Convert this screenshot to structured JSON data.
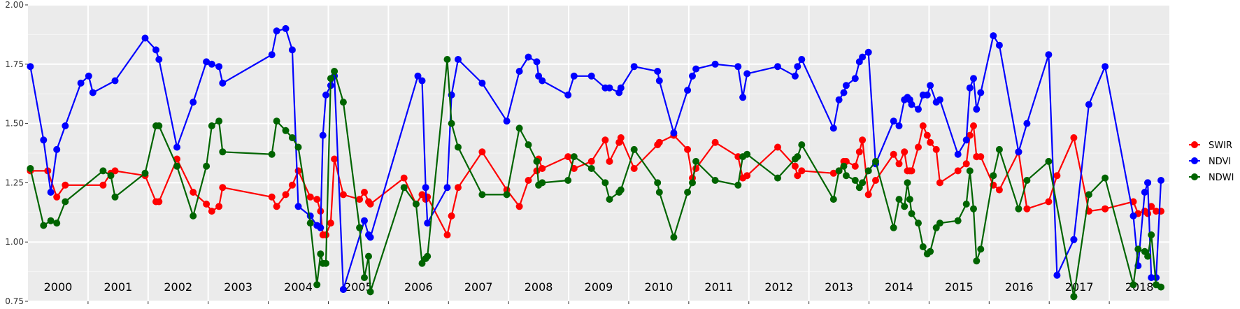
{
  "chart_data": {
    "type": "line",
    "title": "",
    "xlabel": "",
    "ylabel": "",
    "ylim": [
      0.75,
      2.0
    ],
    "yticks": [
      "0.75",
      "1.00",
      "1.25",
      "1.50",
      "1.75",
      "2.00"
    ],
    "xlim": [
      2000.0,
      2019.0
    ],
    "years": [
      "2000",
      "2001",
      "2002",
      "2003",
      "2004",
      "2005",
      "2006",
      "2007",
      "2008",
      "2009",
      "2010",
      "2011",
      "2012",
      "2013",
      "2014",
      "2015",
      "2016",
      "2017",
      "2018"
    ],
    "grid": true,
    "legend_position": "right",
    "series": [
      {
        "name": "SWIR",
        "color": "#ff0000",
        "x": [
          2000.04,
          2000.33,
          2000.48,
          2000.62,
          2001.25,
          2001.38,
          2001.45,
          2001.95,
          2002.13,
          2002.18,
          2002.48,
          2002.75,
          2002.97,
          2003.06,
          2003.18,
          2003.24,
          2004.06,
          2004.14,
          2004.29,
          2004.4,
          2004.5,
          2004.7,
          2004.81,
          2004.87,
          2004.91,
          2004.96,
          2005.04,
          2005.1,
          2005.25,
          2005.52,
          2005.6,
          2005.67,
          2005.7,
          2006.26,
          2006.46,
          2006.56,
          2006.62,
          2006.65,
          2006.98,
          2007.05,
          2007.16,
          2007.56,
          2007.97,
          2008.18,
          2008.33,
          2008.47,
          2008.5,
          2008.56,
          2008.99,
          2009.09,
          2009.38,
          2009.61,
          2009.68,
          2009.84,
          2009.87,
          2010.09,
          2010.48,
          2010.51,
          2010.75,
          2010.98,
          2011.06,
          2011.12,
          2011.44,
          2011.82,
          2011.9,
          2011.97,
          2012.48,
          2012.77,
          2012.81,
          2012.88,
          2013.41,
          2013.5,
          2013.58,
          2013.62,
          2013.77,
          2013.84,
          2013.89,
          2013.99,
          2014.11,
          2014.41,
          2014.5,
          2014.59,
          2014.64,
          2014.68,
          2014.71,
          2014.82,
          2014.9,
          2014.97,
          2015.02,
          2015.12,
          2015.18,
          2015.48,
          2015.62,
          2015.68,
          2015.74,
          2015.79,
          2015.86,
          2016.07,
          2016.17,
          2016.49,
          2016.63,
          2016.99,
          2017.13,
          2017.41,
          2017.66,
          2017.93,
          2018.4,
          2018.48,
          2018.59,
          2018.64,
          2018.7,
          2018.78,
          2018.86
        ],
        "y": [
          1.3,
          1.3,
          1.19,
          1.24,
          1.24,
          1.29,
          1.3,
          1.28,
          1.17,
          1.17,
          1.35,
          1.21,
          1.16,
          1.13,
          1.15,
          1.23,
          1.19,
          1.15,
          1.2,
          1.24,
          1.3,
          1.19,
          1.18,
          1.13,
          1.03,
          1.03,
          1.08,
          1.35,
          1.2,
          1.18,
          1.21,
          1.17,
          1.16,
          1.27,
          1.16,
          1.2,
          1.18,
          1.19,
          1.03,
          1.11,
          1.23,
          1.38,
          1.22,
          1.15,
          1.26,
          1.3,
          1.35,
          1.31,
          1.36,
          1.31,
          1.34,
          1.43,
          1.34,
          1.42,
          1.44,
          1.31,
          1.41,
          1.42,
          1.45,
          1.39,
          1.27,
          1.31,
          1.42,
          1.36,
          1.27,
          1.28,
          1.4,
          1.32,
          1.28,
          1.3,
          1.29,
          1.3,
          1.34,
          1.34,
          1.32,
          1.38,
          1.43,
          1.2,
          1.26,
          1.37,
          1.33,
          1.38,
          1.3,
          1.3,
          1.3,
          1.4,
          1.49,
          1.45,
          1.42,
          1.39,
          1.25,
          1.3,
          1.33,
          1.45,
          1.49,
          1.36,
          1.36,
          1.24,
          1.22,
          1.38,
          1.14,
          1.17,
          1.28,
          1.44,
          1.13,
          1.14,
          1.17,
          1.12,
          1.13,
          1.12,
          1.15,
          1.13,
          1.13
        ],
        "dot_ends": [
          95,
          105,
          108
        ]
      },
      {
        "name": "NDVI",
        "color": "#0000ff",
        "x": [
          2000.04,
          2000.26,
          2000.38,
          2000.48,
          2000.62,
          2000.88,
          2001.01,
          2001.08,
          2001.45,
          2001.95,
          2002.13,
          2002.18,
          2002.48,
          2002.75,
          2002.97,
          2003.06,
          2003.18,
          2003.24,
          2004.06,
          2004.14,
          2004.29,
          2004.4,
          2004.5,
          2004.7,
          2004.81,
          2004.87,
          2004.91,
          2004.96,
          2005.04,
          2005.1,
          2005.25,
          2005.6,
          2005.67,
          2005.7,
          2006.49,
          2006.56,
          2006.62,
          2006.65,
          2006.98,
          2007.05,
          2007.16,
          2007.56,
          2007.97,
          2008.18,
          2008.33,
          2008.47,
          2008.5,
          2008.56,
          2008.99,
          2009.09,
          2009.38,
          2009.61,
          2009.68,
          2009.84,
          2009.87,
          2010.09,
          2010.48,
          2010.51,
          2010.75,
          2010.98,
          2011.06,
          2011.12,
          2011.44,
          2011.82,
          2011.9,
          2011.97,
          2012.48,
          2012.77,
          2012.81,
          2012.88,
          2013.41,
          2013.5,
          2013.58,
          2013.62,
          2013.77,
          2013.84,
          2013.89,
          2013.99,
          2014.11,
          2014.41,
          2014.5,
          2014.59,
          2014.64,
          2014.68,
          2014.71,
          2014.82,
          2014.9,
          2014.97,
          2015.02,
          2015.12,
          2015.18,
          2015.48,
          2015.62,
          2015.68,
          2015.74,
          2015.79,
          2015.86,
          2016.07,
          2016.17,
          2016.49,
          2016.63,
          2016.99,
          2017.13,
          2017.41,
          2017.66,
          2017.93,
          2018.4,
          2018.48,
          2018.59,
          2018.64,
          2018.7,
          2018.78,
          2018.86
        ],
        "y": [
          1.74,
          1.43,
          1.21,
          1.39,
          1.49,
          1.67,
          1.7,
          1.63,
          1.68,
          1.86,
          1.81,
          1.77,
          1.4,
          1.59,
          1.76,
          1.75,
          1.74,
          1.67,
          1.79,
          1.89,
          1.9,
          1.81,
          1.15,
          1.11,
          1.07,
          1.06,
          1.45,
          1.62,
          1.66,
          1.7,
          0.8,
          1.09,
          1.03,
          1.02,
          1.7,
          1.68,
          1.23,
          1.08,
          1.23,
          1.62,
          1.77,
          1.67,
          1.51,
          1.72,
          1.78,
          1.76,
          1.7,
          1.68,
          1.62,
          1.7,
          1.7,
          1.65,
          1.65,
          1.63,
          1.65,
          1.74,
          1.72,
          1.68,
          1.46,
          1.64,
          1.7,
          1.73,
          1.75,
          1.74,
          1.61,
          1.71,
          1.74,
          1.7,
          1.74,
          1.77,
          1.48,
          1.6,
          1.63,
          1.66,
          1.69,
          1.76,
          1.78,
          1.8,
          1.33,
          1.51,
          1.49,
          1.6,
          1.61,
          1.6,
          1.58,
          1.56,
          1.62,
          1.62,
          1.66,
          1.59,
          1.6,
          1.37,
          1.43,
          1.65,
          1.69,
          1.56,
          1.63,
          1.87,
          1.83,
          1.38,
          1.5,
          1.79,
          0.86,
          1.01,
          1.58,
          1.74,
          1.11,
          0.9,
          1.21,
          1.25,
          0.85,
          0.85,
          1.26
        ],
        "dot_ends": [
          30,
          99,
          103,
          109
        ]
      },
      {
        "name": "NDWI",
        "color": "#006400",
        "x": [
          2000.04,
          2000.26,
          2000.38,
          2000.48,
          2000.62,
          2001.25,
          2001.38,
          2001.45,
          2001.95,
          2002.13,
          2002.18,
          2002.48,
          2002.75,
          2002.97,
          2003.06,
          2003.18,
          2003.24,
          2004.06,
          2004.14,
          2004.29,
          2004.4,
          2004.5,
          2004.7,
          2004.81,
          2004.87,
          2004.91,
          2004.96,
          2005.04,
          2005.1,
          2005.25,
          2005.52,
          2005.6,
          2005.67,
          2005.7,
          2006.26,
          2006.46,
          2006.56,
          2006.62,
          2006.65,
          2006.98,
          2007.05,
          2007.16,
          2007.56,
          2007.97,
          2008.18,
          2008.33,
          2008.47,
          2008.5,
          2008.56,
          2008.99,
          2009.09,
          2009.38,
          2009.61,
          2009.68,
          2009.84,
          2009.87,
          2010.09,
          2010.48,
          2010.51,
          2010.75,
          2010.98,
          2011.06,
          2011.12,
          2011.44,
          2011.82,
          2011.9,
          2011.97,
          2012.48,
          2012.77,
          2012.81,
          2012.88,
          2013.41,
          2013.5,
          2013.58,
          2013.62,
          2013.77,
          2013.84,
          2013.89,
          2013.99,
          2014.11,
          2014.41,
          2014.5,
          2014.59,
          2014.64,
          2014.68,
          2014.71,
          2014.82,
          2014.9,
          2014.97,
          2015.02,
          2015.12,
          2015.18,
          2015.48,
          2015.62,
          2015.68,
          2015.74,
          2015.79,
          2015.86,
          2016.07,
          2016.17,
          2016.49,
          2016.63,
          2016.99,
          2017.41,
          2017.66,
          2017.93,
          2018.4,
          2018.48,
          2018.59,
          2018.64,
          2018.7,
          2018.78,
          2018.86
        ],
        "y": [
          1.31,
          1.07,
          1.09,
          1.08,
          1.17,
          1.3,
          1.28,
          1.19,
          1.29,
          1.49,
          1.49,
          1.32,
          1.11,
          1.32,
          1.49,
          1.51,
          1.38,
          1.37,
          1.51,
          1.47,
          1.44,
          1.4,
          1.08,
          0.82,
          0.95,
          0.91,
          0.91,
          1.69,
          1.72,
          1.59,
          1.06,
          0.85,
          0.94,
          0.79,
          1.23,
          1.16,
          0.91,
          0.93,
          0.94,
          1.77,
          1.5,
          1.4,
          1.2,
          1.2,
          1.48,
          1.41,
          1.34,
          1.24,
          1.25,
          1.26,
          1.36,
          1.31,
          1.25,
          1.18,
          1.21,
          1.22,
          1.39,
          1.25,
          1.21,
          1.02,
          1.21,
          1.25,
          1.34,
          1.26,
          1.24,
          1.36,
          1.37,
          1.27,
          1.35,
          1.36,
          1.41,
          1.18,
          1.3,
          1.32,
          1.28,
          1.26,
          1.23,
          1.25,
          1.3,
          1.34,
          1.06,
          1.18,
          1.15,
          1.25,
          1.18,
          1.12,
          1.08,
          0.98,
          0.95,
          0.96,
          1.06,
          1.08,
          1.09,
          1.16,
          1.3,
          1.14,
          0.92,
          0.97,
          1.28,
          1.39,
          1.14,
          1.26,
          1.34,
          0.77,
          1.2,
          1.27,
          0.82,
          0.97,
          0.96,
          0.94,
          1.03,
          0.82,
          0.81
        ],
        "dot_ends": [
          103
        ]
      }
    ]
  }
}
